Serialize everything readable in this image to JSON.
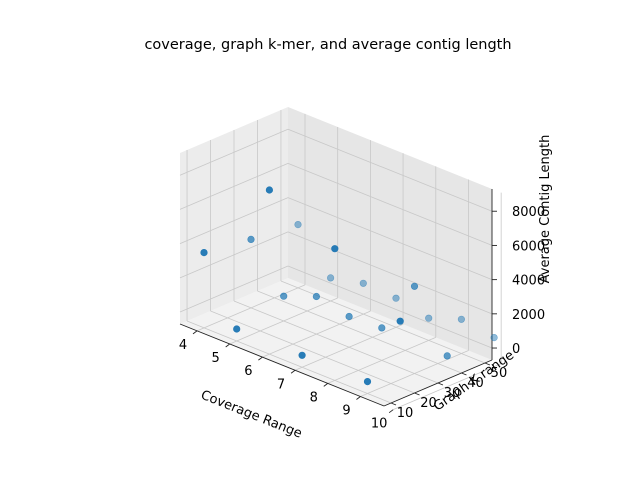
{
  "chart_data": {
    "type": "scatter",
    "projection": "3d",
    "title": "coverage, graph k-mer, and average contig length",
    "xlabel": "Coverage Range",
    "ylabel": "Graph K range",
    "zlabel": "Average Contig Length",
    "xlim": [
      4,
      10
    ],
    "ylim": [
      10,
      50
    ],
    "zlim": [
      0,
      9000
    ],
    "xticks": [
      "4",
      "5",
      "6",
      "7",
      "8",
      "9",
      "10"
    ],
    "yticks": [
      "10",
      "20",
      "30",
      "40",
      "50"
    ],
    "zticks": [
      "0",
      "2000",
      "4000",
      "6000",
      "8000"
    ],
    "grid": true,
    "marker_color": "#1f77b4",
    "points": [
      {
        "x": 4,
        "y": 10,
        "z": 3700
      },
      {
        "x": 4,
        "y": 30,
        "z": 3300
      },
      {
        "x": 4,
        "y": 50,
        "z": 3000
      },
      {
        "x": 5,
        "y": 10,
        "z": 0
      },
      {
        "x": 5,
        "y": 30,
        "z": 750
      },
      {
        "x": 5,
        "y": 50,
        "z": 650
      },
      {
        "x": 6,
        "y": 10,
        "z": 8900
      },
      {
        "x": 6,
        "y": 30,
        "z": 1500
      },
      {
        "x": 6,
        "y": 50,
        "z": 1100
      },
      {
        "x": 7,
        "y": 10,
        "z": 0
      },
      {
        "x": 7,
        "y": 30,
        "z": 1100
      },
      {
        "x": 7,
        "y": 50,
        "z": 1000
      },
      {
        "x": 8,
        "y": 10,
        "z": 7000
      },
      {
        "x": 8,
        "y": 30,
        "z": 1200
      },
      {
        "x": 8,
        "y": 50,
        "z": 600
      },
      {
        "x": 9,
        "y": 10,
        "z": 0
      },
      {
        "x": 9,
        "y": 30,
        "z": 4400
      },
      {
        "x": 9,
        "y": 50,
        "z": 1300
      },
      {
        "x": 10,
        "y": 10,
        "z": 4300
      },
      {
        "x": 10,
        "y": 30,
        "z": 1100
      },
      {
        "x": 10,
        "y": 50,
        "z": 1000
      }
    ]
  }
}
